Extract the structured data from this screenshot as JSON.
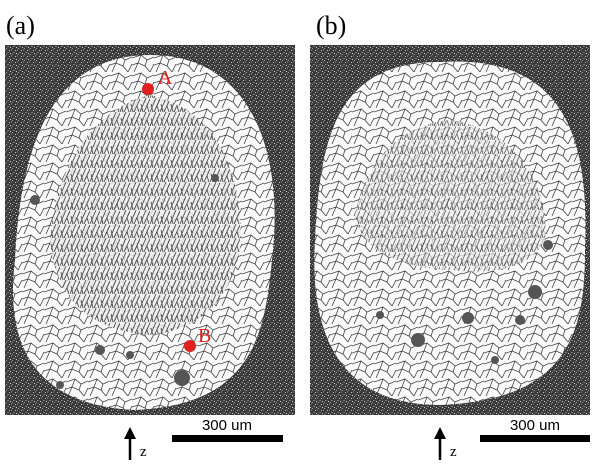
{
  "panels": [
    {
      "label": "(a)",
      "points": [
        "A",
        "B"
      ],
      "scale_bar": "300 um",
      "axis_label": "z"
    },
    {
      "label": "(b)",
      "scale_bar": "300 um",
      "axis_label": "z"
    }
  ]
}
